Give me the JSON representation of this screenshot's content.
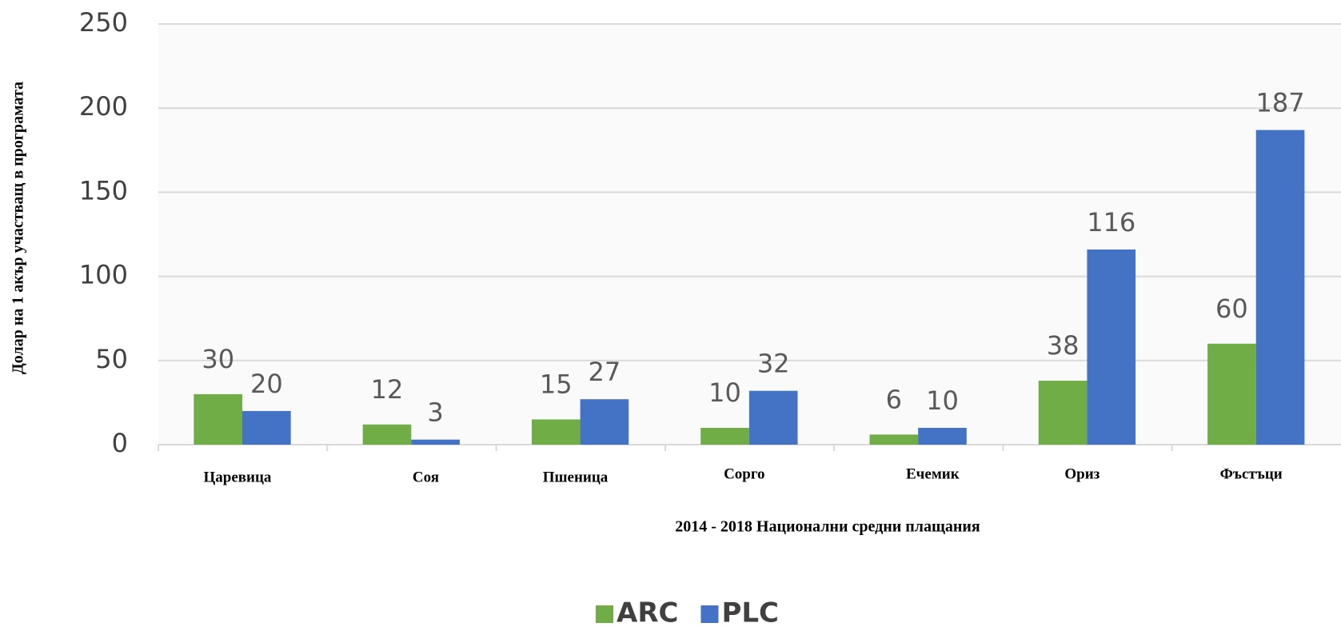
{
  "chart_data": {
    "type": "bar",
    "x_label": "2014 - 2018 Национални средни плащания",
    "y_label": "Долар на 1 акър участващ в програмата",
    "categories": [
      "Царевица",
      "Соя",
      "Пшеница",
      "Сорго",
      "Ечемик",
      "Ориз",
      "Фъстъци"
    ],
    "series": [
      {
        "name": "ARC",
        "color": "#70ad47",
        "values": [
          30,
          12,
          15,
          10,
          6,
          38,
          60
        ]
      },
      {
        "name": "PLC",
        "color": "#4472c4",
        "values": [
          20,
          3,
          27,
          32,
          10,
          116,
          187
        ]
      }
    ],
    "ylim": [
      0,
      250
    ],
    "yticks": [
      0,
      50,
      100,
      150,
      200,
      250
    ],
    "grid": true,
    "legend": "bottom"
  }
}
